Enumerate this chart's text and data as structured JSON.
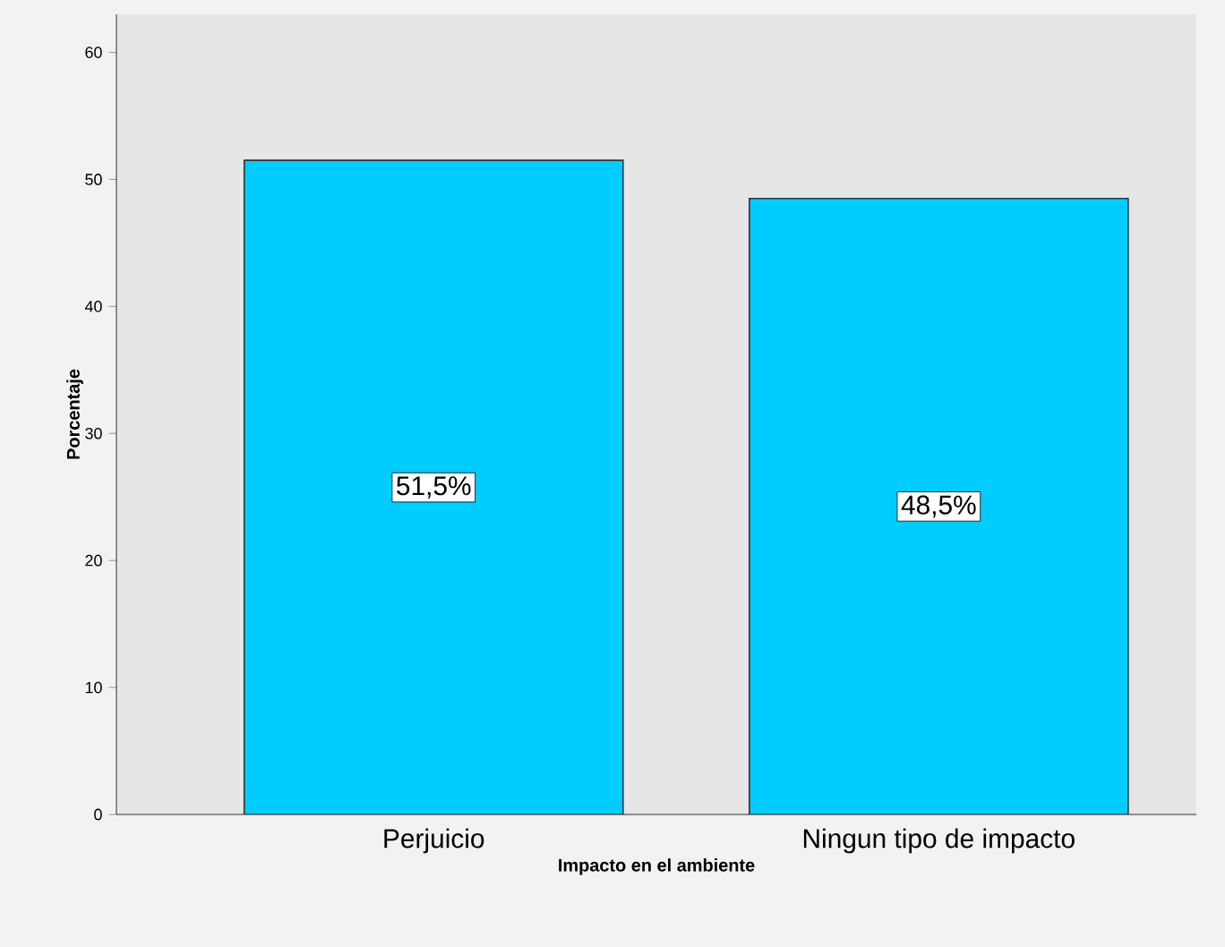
{
  "chart_data": {
    "type": "bar",
    "xlabel": "Impacto en el ambiente",
    "ylabel": "Porcentaje",
    "categories": [
      "Perjuicio",
      "Ningun tipo de impacto"
    ],
    "values": [
      51.5,
      48.5
    ],
    "value_labels": [
      "51,5%",
      "48,5%"
    ],
    "color": "#00ccff",
    "ylim": [
      0,
      63
    ],
    "yticks": [
      0,
      10,
      20,
      30,
      40,
      50,
      60
    ]
  }
}
